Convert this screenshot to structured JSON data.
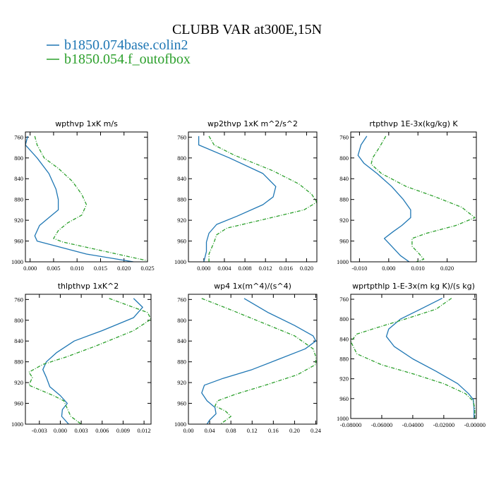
{
  "figure": {
    "title": "CLUBB VAR at300E,15N",
    "legend": [
      {
        "label": "b1850.074base.colin2",
        "color": "#1f77b4"
      },
      {
        "label": "b1850.054.f_outofbox",
        "color": "#2ca02c"
      }
    ]
  },
  "chart_data": [
    {
      "type": "line",
      "title": "wpthvp  1xK m/s",
      "xlim": [
        -0.001,
        0.025
      ],
      "ylim": [
        1000,
        750
      ],
      "xticks": [
        0,
        0.005,
        0.01,
        0.015,
        0.02,
        0.025
      ],
      "xtick_labels": [
        "0.000",
        "0.005",
        "0.010",
        "0.015",
        "0.020",
        "0.025"
      ],
      "yticks": [
        760,
        800,
        840,
        880,
        920,
        960,
        1000
      ],
      "series": [
        {
          "name": "b1850.074base.colin2",
          "line": "solid",
          "points": [
            [
              -0.0005,
              758
            ],
            [
              -0.001,
              775
            ],
            [
              0.0015,
              800
            ],
            [
              0.004,
              830
            ],
            [
              0.0055,
              860
            ],
            [
              0.006,
              880
            ],
            [
              0.006,
              900
            ],
            [
              0.004,
              915
            ],
            [
              0.002,
              930
            ],
            [
              0.001,
              950
            ],
            [
              0.0015,
              960
            ],
            [
              0.012,
              985
            ],
            [
              0.022,
              1000
            ]
          ]
        },
        {
          "name": "b1850.054.f_outofbox",
          "line": "dashed",
          "points": [
            [
              0.001,
              758
            ],
            [
              0.0015,
              775
            ],
            [
              0.003,
              800
            ],
            [
              0.006,
              820
            ],
            [
              0.009,
              845
            ],
            [
              0.011,
              870
            ],
            [
              0.012,
              890
            ],
            [
              0.011,
              910
            ],
            [
              0.008,
              925
            ],
            [
              0.006,
              940
            ],
            [
              0.005,
              955
            ],
            [
              0.007,
              962
            ],
            [
              0.016,
              980
            ],
            [
              0.025,
              998
            ]
          ]
        }
      ]
    },
    {
      "type": "line",
      "title": "wp2thvp  1xK m^2/s^2",
      "xlim": [
        -0.003,
        0.022
      ],
      "ylim": [
        1000,
        750
      ],
      "xticks": [
        0,
        0.004,
        0.008,
        0.012,
        0.016,
        0.02
      ],
      "xtick_labels": [
        "0.000",
        "0.004",
        "0.008",
        "0.012",
        "0.016",
        "0.020"
      ],
      "yticks": [
        760,
        800,
        840,
        880,
        920,
        960,
        1000
      ],
      "series": [
        {
          "name": "b1850.074base.colin2",
          "line": "solid",
          "points": [
            [
              -0.001,
              758
            ],
            [
              -0.001,
              775
            ],
            [
              0.005,
              800
            ],
            [
              0.0115,
              830
            ],
            [
              0.014,
              855
            ],
            [
              0.0135,
              875
            ],
            [
              0.0115,
              890
            ],
            [
              0.0065,
              912
            ],
            [
              0.0025,
              928
            ],
            [
              0.001,
              945
            ],
            [
              0.0005,
              962
            ],
            [
              0.0005,
              980
            ],
            [
              0,
              1000
            ]
          ]
        },
        {
          "name": "b1850.054.f_outofbox",
          "line": "dashed",
          "points": [
            [
              0.001,
              758
            ],
            [
              0.002,
              775
            ],
            [
              0.006,
              795
            ],
            [
              0.0135,
              825
            ],
            [
              0.0185,
              850
            ],
            [
              0.021,
              870
            ],
            [
              0.022,
              885
            ],
            [
              0.0195,
              900
            ],
            [
              0.011,
              920
            ],
            [
              0.0045,
              935
            ],
            [
              0.0025,
              948
            ],
            [
              0.002,
              962
            ],
            [
              0.001,
              985
            ],
            [
              0.001,
              1000
            ]
          ]
        }
      ]
    },
    {
      "type": "line",
      "title": "rtpthvp  1E-3x(kg/kg) K",
      "xlim": [
        -0.013,
        0.03
      ],
      "ylim": [
        1000,
        750
      ],
      "xticks": [
        -0.01,
        0,
        0.01,
        0.02
      ],
      "xtick_labels": [
        "-0.010",
        "0.000",
        "0.010",
        "0.020"
      ],
      "yticks": [
        760,
        800,
        840,
        880,
        920,
        960,
        1000
      ],
      "series": [
        {
          "name": "b1850.074base.colin2",
          "line": "solid",
          "points": [
            [
              -0.0075,
              758
            ],
            [
              -0.0095,
              775
            ],
            [
              -0.0105,
              795
            ],
            [
              -0.0085,
              810
            ],
            [
              -0.004,
              830
            ],
            [
              0.001,
              855
            ],
            [
              0.005,
              880
            ],
            [
              0.0075,
              900
            ],
            [
              0.0075,
              915
            ],
            [
              0.0045,
              930
            ],
            [
              0.0015,
              942
            ],
            [
              -0.0015,
              955
            ],
            [
              0.001,
              970
            ],
            [
              0.004,
              988
            ],
            [
              0.007,
              1000
            ]
          ]
        },
        {
          "name": "b1850.054.f_outofbox",
          "line": "dashed",
          "points": [
            [
              -0.001,
              758
            ],
            [
              -0.003,
              778
            ],
            [
              -0.0055,
              800
            ],
            [
              -0.006,
              812
            ],
            [
              -0.0025,
              830
            ],
            [
              0.006,
              855
            ],
            [
              0.016,
              875
            ],
            [
              0.025,
              895
            ],
            [
              0.0295,
              915
            ],
            [
              0.023,
              930
            ],
            [
              0.013,
              945
            ],
            [
              0.008,
              955
            ],
            [
              0.008,
              970
            ],
            [
              0.0105,
              985
            ],
            [
              0.012,
              995
            ],
            [
              0.0095,
              1000
            ]
          ]
        }
      ]
    },
    {
      "type": "line",
      "title": "thlpthvp   1xK^2",
      "xlim": [
        -0.005,
        0.013
      ],
      "ylim": [
        1000,
        750
      ],
      "xticks": [
        -0.003,
        0,
        0.003,
        0.006,
        0.009,
        0.012
      ],
      "xtick_labels": [
        "-0.003",
        "0.000",
        "0.003",
        "0.006",
        "0.009",
        "0.012"
      ],
      "yticks": [
        760,
        800,
        840,
        880,
        920,
        960,
        1000
      ],
      "series": [
        {
          "name": "b1850.074base.colin2",
          "line": "solid",
          "points": [
            [
              0.0105,
              758
            ],
            [
              0.0118,
              775
            ],
            [
              0.0105,
              795
            ],
            [
              0.006,
              820
            ],
            [
              0.002,
              840
            ],
            [
              -0.0005,
              862
            ],
            [
              -0.002,
              880
            ],
            [
              -0.0025,
              895
            ],
            [
              -0.002,
              910
            ],
            [
              -0.0015,
              928
            ],
            [
              0,
              945
            ],
            [
              0.001,
              960
            ],
            [
              0.0003,
              972
            ],
            [
              0.0002,
              985
            ],
            [
              0.0012,
              1000
            ]
          ]
        },
        {
          "name": "b1850.054.f_outofbox",
          "line": "dashed",
          "points": [
            [
              0.007,
              758
            ],
            [
              0.0125,
              785
            ],
            [
              0.013,
              798
            ],
            [
              0.0105,
              820
            ],
            [
              0.005,
              850
            ],
            [
              0.001,
              870
            ],
            [
              -0.0025,
              885
            ],
            [
              -0.0045,
              900
            ],
            [
              -0.004,
              910
            ],
            [
              -0.0045,
              925
            ],
            [
              -0.001,
              945
            ],
            [
              0.0005,
              955
            ],
            [
              0.001,
              970
            ],
            [
              0.0015,
              985
            ],
            [
              0.003,
              1000
            ]
          ]
        }
      ]
    },
    {
      "type": "line",
      "title": "wp4   1x(m^4)/(s^4)",
      "xlim": [
        0,
        0.242
      ],
      "ylim": [
        1000,
        750
      ],
      "xticks": [
        0,
        0.04,
        0.08,
        0.12,
        0.16,
        0.2,
        0.24
      ],
      "xtick_labels": [
        "0.00",
        "0.04",
        "0.08",
        "0.12",
        "0.16",
        "0.20",
        "0.24"
      ],
      "yticks": [
        760,
        800,
        840,
        880,
        920,
        960,
        1000
      ],
      "series": [
        {
          "name": "b1850.074base.colin2",
          "line": "solid",
          "points": [
            [
              0.105,
              758
            ],
            [
              0.15,
              785
            ],
            [
              0.2,
              810
            ],
            [
              0.235,
              830
            ],
            [
              0.24,
              840
            ],
            [
              0.22,
              855
            ],
            [
              0.17,
              875
            ],
            [
              0.12,
              895
            ],
            [
              0.065,
              912
            ],
            [
              0.03,
              925
            ],
            [
              0.025,
              940
            ],
            [
              0.035,
              955
            ],
            [
              0.05,
              968
            ],
            [
              0.052,
              980
            ],
            [
              0.04,
              992
            ],
            [
              0.035,
              1000
            ]
          ]
        },
        {
          "name": "b1850.054.f_outofbox",
          "line": "dashed",
          "points": [
            [
              0.025,
              758
            ],
            [
              0.08,
              780
            ],
            [
              0.14,
              805
            ],
            [
              0.2,
              830
            ],
            [
              0.235,
              855
            ],
            [
              0.24,
              870
            ],
            [
              0.24,
              885
            ],
            [
              0.205,
              905
            ],
            [
              0.145,
              925
            ],
            [
              0.09,
              942
            ],
            [
              0.055,
              955
            ],
            [
              0.05,
              965
            ],
            [
              0.07,
              975
            ],
            [
              0.08,
              985
            ],
            [
              0.07,
              993
            ],
            [
              0.06,
              1000
            ]
          ]
        }
      ]
    },
    {
      "type": "line",
      "title": "wprtpthlp  1-E-3x(m kg K)/(s kg)",
      "xlim": [
        -0.08,
        0.001
      ],
      "ylim": [
        1000,
        750
      ],
      "xticks": [
        -0.08,
        -0.06,
        -0.04,
        -0.02,
        0
      ],
      "xtick_labels": [
        "-0.08000",
        "-0.06000",
        "-0.04000",
        "-0.02000",
        "-0.00000"
      ],
      "yticks": [
        760,
        800,
        840,
        880,
        920,
        960,
        1000
      ],
      "series": [
        {
          "name": "b1850.074base.colin2",
          "line": "solid",
          "points": [
            [
              -0.021,
              758
            ],
            [
              -0.035,
              780
            ],
            [
              -0.048,
              800
            ],
            [
              -0.0555,
              820
            ],
            [
              -0.057,
              835
            ],
            [
              -0.052,
              855
            ],
            [
              -0.04,
              880
            ],
            [
              -0.025,
              905
            ],
            [
              -0.011,
              930
            ],
            [
              -0.004,
              950
            ],
            [
              -0.001,
              962
            ],
            [
              -0.0005,
              980
            ],
            [
              -0.0005,
              1000
            ]
          ]
        },
        {
          "name": "b1850.054.f_outofbox",
          "line": "dashed",
          "points": [
            [
              -0.015,
              758
            ],
            [
              -0.025,
              780
            ],
            [
              -0.045,
              800
            ],
            [
              -0.064,
              818
            ],
            [
              -0.076,
              830
            ],
            [
              -0.08,
              845
            ],
            [
              -0.076,
              870
            ],
            [
              -0.06,
              892
            ],
            [
              -0.04,
              910
            ],
            [
              -0.02,
              930
            ],
            [
              -0.006,
              950
            ],
            [
              -0.001,
              965
            ],
            [
              0,
              980
            ],
            [
              0,
              1000
            ]
          ]
        }
      ]
    }
  ]
}
